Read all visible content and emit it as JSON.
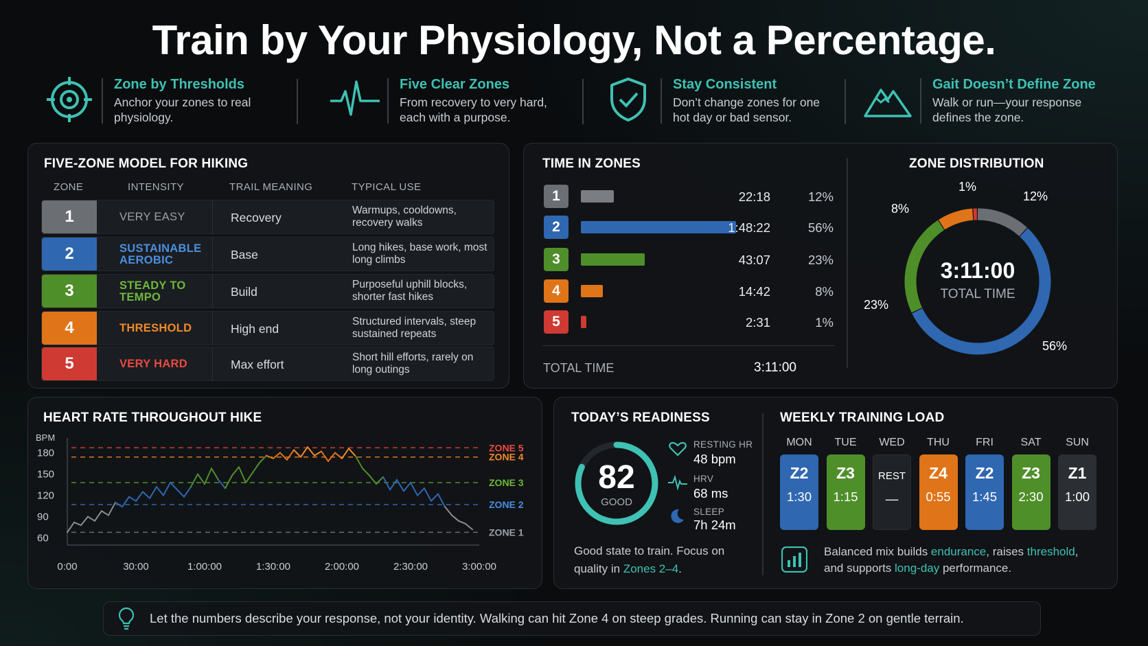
{
  "title": "Train by Your Physiology, Not a Percentage.",
  "features": [
    {
      "icon": "target-icon",
      "title": "Zone by Thresholds",
      "desc": "Anchor your zones to real physiology."
    },
    {
      "icon": "heartbeat-icon",
      "title": "Five Clear Zones",
      "desc": "From recovery to very hard, each with a purpose."
    },
    {
      "icon": "shield-check-icon",
      "title": "Stay Consistent",
      "desc": "Don’t change zones for one hot day or bad sensor."
    },
    {
      "icon": "mountain-icon",
      "title": "Gait Doesn’t Define Zone",
      "desc": "Walk or run—your response defines the zone."
    }
  ],
  "colors": {
    "z1": "#6b6e72",
    "z2": "#2f67b1",
    "z3": "#4f8f2a",
    "z4": "#e07418",
    "z5": "#cf3a33",
    "accent": "#3fc1b4"
  },
  "zone_model": {
    "title": "FIVE-ZONE MODEL FOR HIKING",
    "headers": [
      "ZONE",
      "INTENSITY",
      "TRAIL MEANING",
      "TYPICAL USE"
    ],
    "rows": [
      {
        "zone": "1",
        "intensity": "VERY EASY",
        "meaning": "Recovery",
        "use": "Warmups, cooldowns, recovery walks"
      },
      {
        "zone": "2",
        "intensity": "SUSTAINABLE AEROBIC",
        "meaning": "Base",
        "use": "Long hikes, base work, most long climbs"
      },
      {
        "zone": "3",
        "intensity": "STEADY TO TEMPO",
        "meaning": "Build",
        "use": "Purposeful uphill blocks, shorter fast hikes"
      },
      {
        "zone": "4",
        "intensity": "THRESHOLD",
        "meaning": "High end",
        "use": "Structured intervals, steep sustained repeats"
      },
      {
        "zone": "5",
        "intensity": "VERY HARD",
        "meaning": "Max effort",
        "use": "Short hill efforts, rarely on long outings"
      }
    ]
  },
  "time_in_zones": {
    "title": "TIME IN ZONES",
    "rows": [
      {
        "zone": "1",
        "time": "22:18",
        "pct": "12%",
        "pct_value": 12
      },
      {
        "zone": "2",
        "time": "1:48:22",
        "pct": "56%",
        "pct_value": 56
      },
      {
        "zone": "3",
        "time": "43:07",
        "pct": "23%",
        "pct_value": 23
      },
      {
        "zone": "4",
        "time": "14:42",
        "pct": "8%",
        "pct_value": 8
      },
      {
        "zone": "5",
        "time": "2:31",
        "pct": "1%",
        "pct_value": 1
      }
    ],
    "total_label": "TOTAL TIME",
    "total_value": "3:11:00"
  },
  "distribution": {
    "title": "ZONE DISTRIBUTION",
    "center_value": "3:11:00",
    "center_label": "TOTAL TIME",
    "labels": {
      "z1": "12%",
      "z2": "56%",
      "z3": "23%",
      "z4": "8%",
      "z5": "1%"
    }
  },
  "heart_rate": {
    "title": "HEART RATE THROUGHOUT HIKE",
    "ylabel": "BPM",
    "zone_labels": [
      "ZONE 5",
      "ZONE 4",
      "ZONE 3",
      "ZONE 2",
      "ZONE 1"
    ]
  },
  "chart_data": {
    "type": "line",
    "title": "HEART RATE THROUGHOUT HIKE",
    "ylabel": "BPM",
    "xlabel": "",
    "x_ticks": [
      "0:00",
      "30:00",
      "1:00:00",
      "1:30:00",
      "2:00:00",
      "2:30:00",
      "3:00:00"
    ],
    "y_ticks": [
      180,
      150,
      120,
      90,
      60
    ],
    "ylim": [
      50,
      195
    ],
    "xlim": [
      0,
      180
    ],
    "thresholds": [
      {
        "name": "ZONE 5",
        "value": 187
      },
      {
        "name": "ZONE 4",
        "value": 174
      },
      {
        "name": "ZONE 3",
        "value": 138
      },
      {
        "name": "ZONE 2",
        "value": 107
      },
      {
        "name": "ZONE 1",
        "value": 68
      }
    ],
    "series": [
      {
        "x": [
          0,
          3,
          6,
          9,
          12,
          15,
          18,
          21,
          24,
          27,
          30,
          33,
          36,
          39,
          42,
          45,
          48,
          51,
          54,
          57,
          60,
          63,
          66,
          69,
          72,
          75,
          78,
          81,
          84,
          87,
          90,
          93,
          96,
          99,
          102,
          105,
          108,
          111,
          114,
          117,
          120,
          123,
          126,
          129,
          132,
          135,
          138,
          141,
          144,
          147,
          150,
          153,
          156,
          159,
          162,
          165,
          168,
          171,
          174,
          177
        ],
        "y": [
          68,
          82,
          78,
          90,
          84,
          98,
          92,
          110,
          104,
          118,
          112,
          125,
          116,
          132,
          120,
          138,
          128,
          118,
          132,
          150,
          136,
          158,
          142,
          130,
          148,
          160,
          138,
          152,
          166,
          176,
          172,
          180,
          170,
          184,
          174,
          188,
          176,
          182,
          168,
          180,
          172,
          186,
          175,
          158,
          148,
          136,
          146,
          128,
          142,
          126,
          138,
          120,
          130,
          112,
          122,
          104,
          92,
          84,
          80,
          72
        ]
      }
    ]
  },
  "readiness": {
    "title": "TODAY’S READINESS",
    "score": "82",
    "score_value": 82,
    "score_label": "GOOD",
    "metrics": [
      {
        "icon": "heart-outline-icon",
        "label": "RESTING HR",
        "value": "48 bpm"
      },
      {
        "icon": "pulse-icon",
        "label": "HRV",
        "value": "68 ms"
      },
      {
        "icon": "moon-icon",
        "label": "SLEEP",
        "value": "7h 24m"
      }
    ],
    "note_prefix": "Good state to train. Focus on quality in ",
    "note_highlight": "Zones 2–4",
    "note_suffix": "."
  },
  "weekly": {
    "title": "WEEKLY TRAINING LOAD",
    "days": [
      {
        "day": "MON",
        "zone": "Z2",
        "time": "1:30",
        "color": "#2f67b1"
      },
      {
        "day": "TUE",
        "zone": "Z3",
        "time": "1:15",
        "color": "#4f8f2a"
      },
      {
        "day": "WED",
        "zone": "REST",
        "time": "—",
        "color": "#1f2327"
      },
      {
        "day": "THU",
        "zone": "Z4",
        "time": "0:55",
        "color": "#e07418"
      },
      {
        "day": "FRI",
        "zone": "Z2",
        "time": "1:45",
        "color": "#2f67b1"
      },
      {
        "day": "SAT",
        "zone": "Z3",
        "time": "2:30",
        "color": "#4f8f2a"
      },
      {
        "day": "SUN",
        "zone": "Z1",
        "time": "1:00",
        "color": "#2b2e32"
      }
    ],
    "note": {
      "t1": "Balanced mix builds ",
      "h1": "endurance",
      "t2": ", raises ",
      "h2": "threshold",
      "t3": ",",
      "t4": "and supports ",
      "h3": "long-day",
      "t5": " performance."
    }
  },
  "footer_tip": "Let the numbers describe your response, not your identity. Walking can hit Zone 4 on steep grades. Running can stay in Zone 2 on gentle terrain."
}
